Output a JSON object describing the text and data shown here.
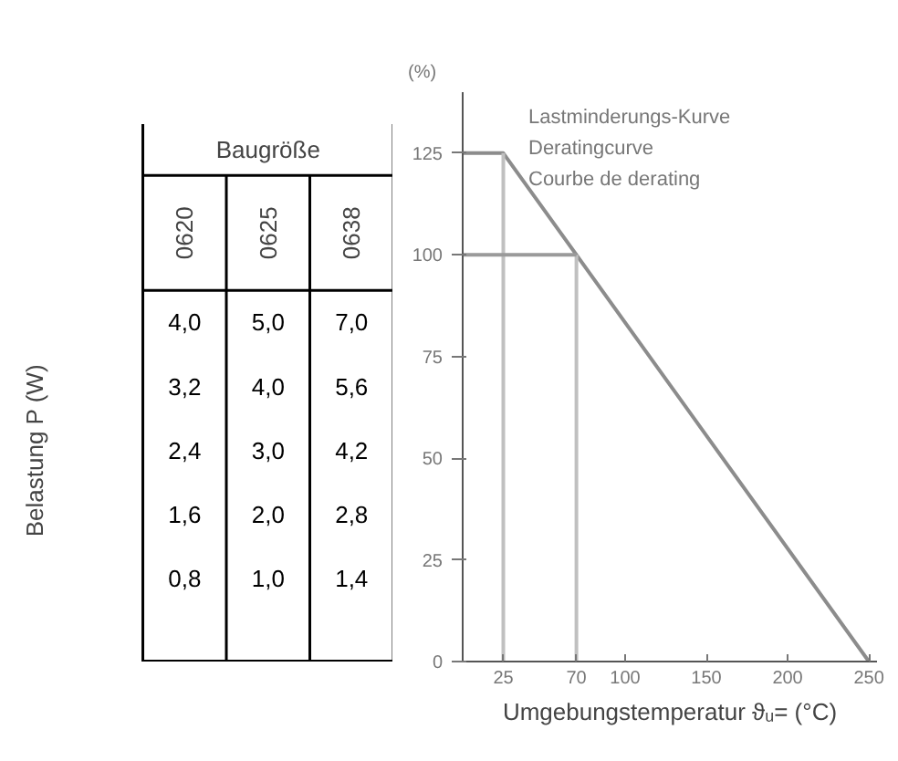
{
  "chart_data": [
    {
      "type": "heatmap",
      "title": "Baugröße",
      "ylabel": "Belastung P (W)",
      "categories": [
        "0620",
        "0625",
        "0638"
      ],
      "y_categories": [
        null,
        null,
        null,
        null,
        null
      ],
      "cells": [
        [
          4.0,
          5.0,
          7.0
        ],
        [
          3.2,
          4.0,
          5.6
        ],
        [
          2.4,
          3.0,
          4.2
        ],
        [
          1.6,
          2.0,
          2.8
        ],
        [
          0.8,
          1.0,
          1.4
        ]
      ],
      "cell_labels": [
        [
          "4,0",
          "5,0",
          "7,0"
        ],
        [
          "3,2",
          "4,0",
          "5,6"
        ],
        [
          "2,4",
          "3,0",
          "4,2"
        ],
        [
          "1,6",
          "2,0",
          "2,8"
        ],
        [
          "0,8",
          "1,0",
          "1,4"
        ]
      ]
    },
    {
      "type": "line",
      "ylabel": "(%)",
      "xlabel": "Umgebungstemperatur ϑᵤ= (°C)",
      "annotations": [
        "Lastminderungs-Kurve",
        "Deratingcurve",
        "Courbe de derating"
      ],
      "x": [
        0,
        25,
        250
      ],
      "series": [
        {
          "color": "#8c8c8c",
          "values": [
            125,
            125,
            0
          ]
        }
      ],
      "xlim": [
        0,
        255
      ],
      "ylim": [
        0,
        140
      ],
      "xticks": [
        25,
        70,
        100,
        150,
        200,
        250
      ],
      "yticks": [
        0,
        25,
        50,
        75,
        100,
        125
      ],
      "ref_lines": [
        {
          "axis": "x",
          "value": 25,
          "color": "#c0c0c0"
        },
        {
          "axis": "x",
          "value": 70,
          "color": "#c0c0c0"
        },
        {
          "axis": "y",
          "value": 100,
          "color": "#9a9a9a"
        }
      ],
      "grid": false
    }
  ]
}
